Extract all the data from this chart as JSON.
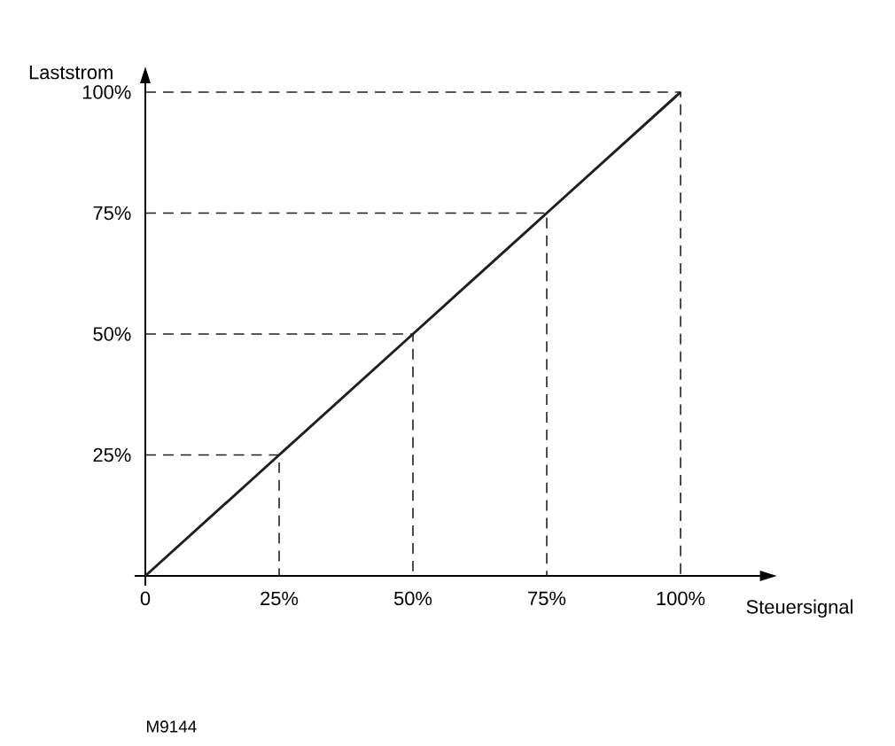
{
  "chart_data": {
    "type": "line",
    "xlabel": "Steuersignal",
    "ylabel": "Laststrom",
    "annotations": [
      "M9144"
    ],
    "xlim": [
      -2,
      115
    ],
    "ylim": [
      -2,
      102
    ],
    "xticks": [
      {
        "value": 0,
        "label": "0"
      },
      {
        "value": 25,
        "label": "25%"
      },
      {
        "value": 50,
        "label": "50%"
      },
      {
        "value": 75,
        "label": "75%"
      },
      {
        "value": 100,
        "label": "100%"
      }
    ],
    "yticks": [
      {
        "value": 25,
        "label": "25%"
      },
      {
        "value": 50,
        "label": "50%"
      },
      {
        "value": 75,
        "label": "75%"
      },
      {
        "value": 100,
        "label": "100%"
      }
    ],
    "series": [
      {
        "color": "#231f20",
        "line_style": "solid",
        "x": [
          0,
          25,
          50,
          75,
          100
        ],
        "values": [
          0,
          25,
          50,
          75,
          100
        ]
      },
      {
        "color": "#231f20",
        "line_style": "dashed",
        "x": [
          0,
          25,
          25
        ],
        "values": [
          25,
          25,
          0
        ]
      },
      {
        "color": "#231f20",
        "line_style": "dashed",
        "x": [
          0,
          50,
          50
        ],
        "values": [
          50,
          50,
          0
        ]
      },
      {
        "color": "#231f20",
        "line_style": "dashed",
        "x": [
          0,
          75,
          75
        ],
        "values": [
          75,
          75,
          0
        ]
      },
      {
        "color": "#231f20",
        "line_style": "dashed",
        "x": [
          0,
          100,
          100
        ],
        "values": [
          100,
          100,
          0
        ]
      }
    ]
  }
}
